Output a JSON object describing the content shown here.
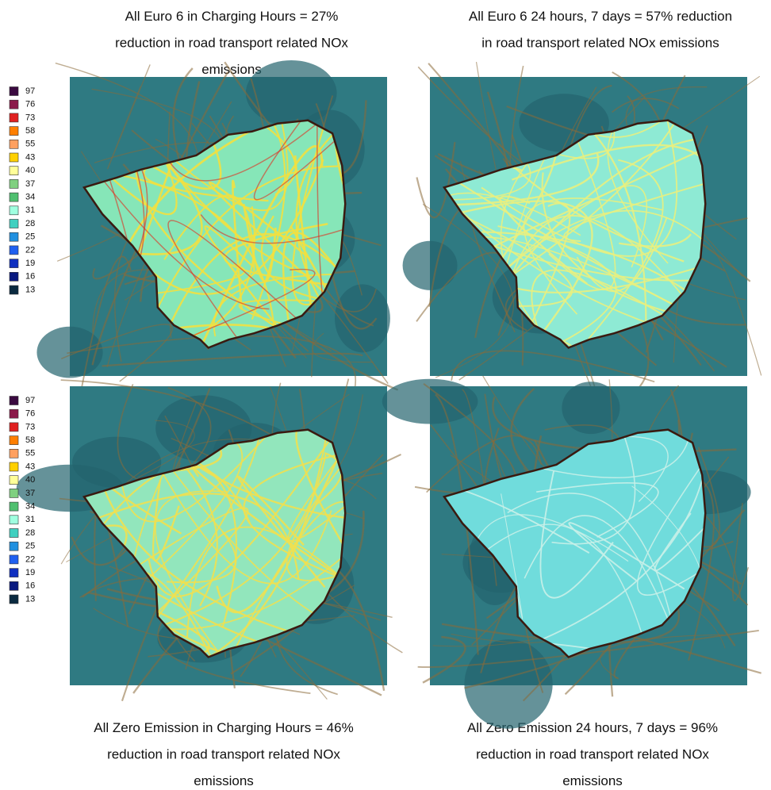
{
  "legend": {
    "items": [
      {
        "label": "97",
        "color": "#3a0a40"
      },
      {
        "label": "76",
        "color": "#8b1a4a"
      },
      {
        "label": "73",
        "color": "#e02020"
      },
      {
        "label": "58",
        "color": "#ff7f00"
      },
      {
        "label": "55",
        "color": "#ffa060"
      },
      {
        "label": "43",
        "color": "#ffd000"
      },
      {
        "label": "40",
        "color": "#ffff99"
      },
      {
        "label": "37",
        "color": "#80d080"
      },
      {
        "label": "34",
        "color": "#50c070"
      },
      {
        "label": "31",
        "color": "#a0ffe0"
      },
      {
        "label": "28",
        "color": "#40d0c0"
      },
      {
        "label": "25",
        "color": "#2090e0"
      },
      {
        "label": "22",
        "color": "#2060f0"
      },
      {
        "label": "19",
        "color": "#1030c0"
      },
      {
        "label": "16",
        "color": "#0a1a80"
      },
      {
        "label": "13",
        "color": "#0a2a40"
      }
    ]
  },
  "panels": [
    {
      "caption_lines": [
        "All Euro 6 in Charging Hours = 27%",
        "reduction in road transport related NOx",
        "emissions"
      ]
    },
    {
      "caption_lines": [
        "All Euro 6 24 hours, 7 days = 57% reduction",
        "in road transport related NOx emissions"
      ]
    },
    {
      "caption_lines": [
        "All Zero Emission in Charging Hours = 46%",
        "reduction in road transport related NOx",
        "emissions"
      ]
    },
    {
      "caption_lines": [
        "All Zero Emission 24 hours, 7 days = 96%",
        "reduction in road transport related NOx",
        "emissions"
      ]
    }
  ]
}
